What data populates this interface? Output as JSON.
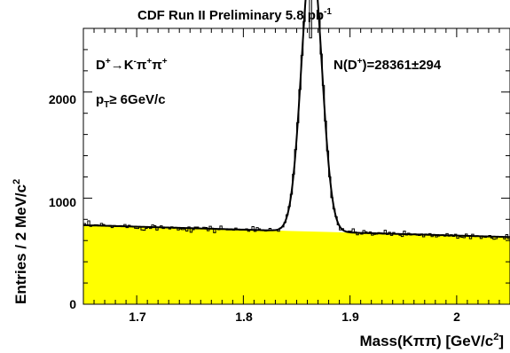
{
  "chart_data": {
    "type": "histogram",
    "title": "CDF Run II Preliminary 5.8 pb",
    "title_sup": "-1",
    "xlabel": "Mass(Kππ)  [GeV/c",
    "xlabel_sup": "2",
    "xlabel_end": "]",
    "ylabel": "Entries / 2 MeV/c",
    "ylabel_sup": "2",
    "xlim": [
      1.65,
      2.05
    ],
    "ylim": [
      0,
      2600
    ],
    "bin_width": 0.002,
    "x_ticks": [
      1.7,
      1.8,
      1.9,
      2.0
    ],
    "x_tick_labels": [
      "1.7",
      "1.8",
      "1.9",
      "2"
    ],
    "y_ticks": [
      0,
      1000,
      2000
    ],
    "y_tick_labels": [
      "0",
      "1000",
      "2000"
    ],
    "annotations": [
      {
        "id": "decay",
        "text": "D⁺→K⁻π⁺π⁺"
      },
      {
        "id": "pt",
        "text": "pT≥ 6GeV/c"
      },
      {
        "id": "yield",
        "text": "N(D⁺)=28361±294"
      }
    ],
    "series": [
      {
        "kind": "data_histogram",
        "color": "#000000"
      },
      {
        "kind": "fit_curve",
        "color": "#000000",
        "background": {
          "a": 745,
          "b": -280
        },
        "signal": {
          "mean": 1.864,
          "sigma": 0.0095,
          "amplitude": 2610
        }
      },
      {
        "kind": "background_fill",
        "color": "#ffff00",
        "background": {
          "a": 745,
          "b": -280
        }
      }
    ]
  }
}
